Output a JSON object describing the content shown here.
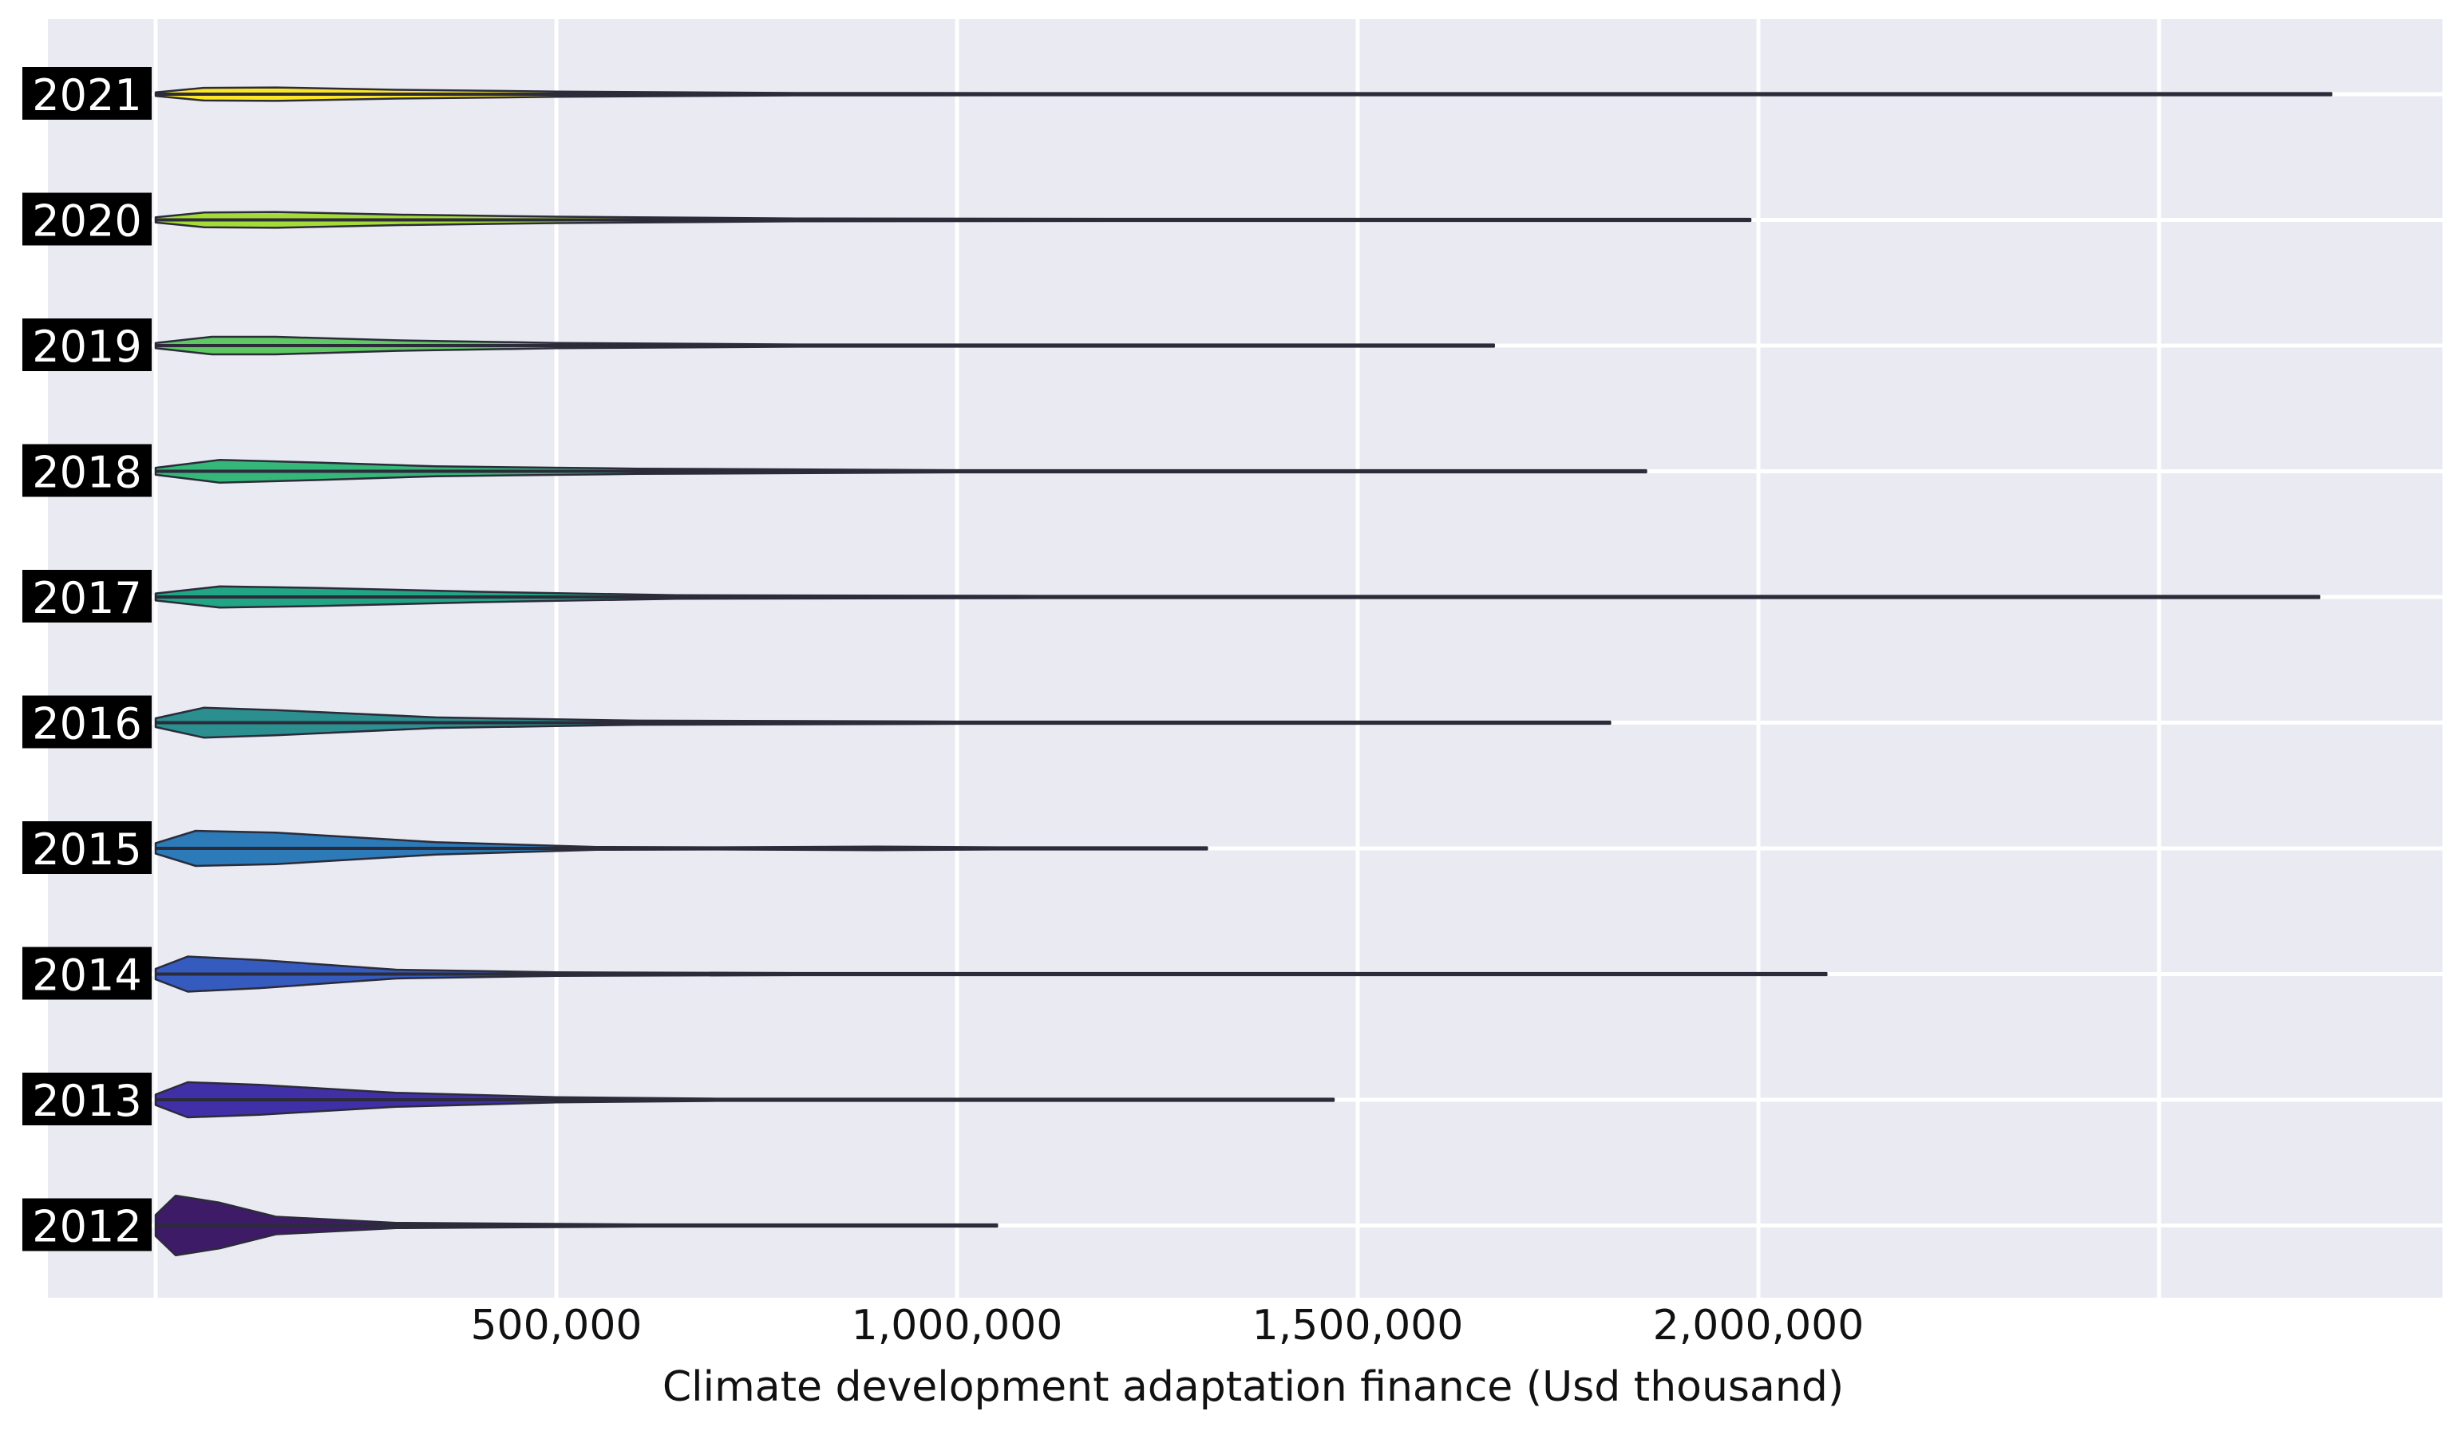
{
  "chart_data": {
    "type": "violin",
    "orientation": "horizontal",
    "xlabel": "Climate development adaptation finance (Usd thousand)",
    "ylabel": "",
    "xlim": [
      -130000,
      2780000
    ],
    "grid": true,
    "x_ticks": [
      0,
      500000,
      1000000,
      1500000,
      2000000,
      2500000
    ],
    "x_tick_labels": [
      {
        "value": 500000,
        "label": "500,000"
      },
      {
        "value": 1000000,
        "label": "1,000,000"
      },
      {
        "value": 1500000,
        "label": "1,500,000"
      },
      {
        "value": 2000000,
        "label": "2,000,000"
      }
    ],
    "series": [
      {
        "name": "2021",
        "max": 2715000,
        "color": "#fde725",
        "profile": [
          [
            0,
            0.1
          ],
          [
            60000,
            0.36
          ],
          [
            150000,
            0.38
          ],
          [
            300000,
            0.25
          ],
          [
            500000,
            0.15
          ],
          [
            800000,
            0.07
          ],
          [
            1200000,
            0.035
          ],
          [
            2000000,
            0.02
          ],
          [
            2715000,
            0.01
          ]
        ]
      },
      {
        "name": "2020",
        "max": 1990000,
        "color": "#a5db36",
        "profile": [
          [
            0,
            0.15
          ],
          [
            60000,
            0.42
          ],
          [
            150000,
            0.45
          ],
          [
            300000,
            0.3
          ],
          [
            500000,
            0.18
          ],
          [
            800000,
            0.08
          ],
          [
            1200000,
            0.04
          ],
          [
            1990000,
            0.012
          ]
        ]
      },
      {
        "name": "2019",
        "max": 1670000,
        "color": "#5ec962",
        "profile": [
          [
            0,
            0.15
          ],
          [
            70000,
            0.5
          ],
          [
            150000,
            0.5
          ],
          [
            300000,
            0.3
          ],
          [
            500000,
            0.15
          ],
          [
            800000,
            0.06
          ],
          [
            1670000,
            0.015
          ]
        ]
      },
      {
        "name": "2018",
        "max": 1860000,
        "color": "#35b779",
        "profile": [
          [
            0,
            0.2
          ],
          [
            80000,
            0.65
          ],
          [
            200000,
            0.5
          ],
          [
            350000,
            0.28
          ],
          [
            600000,
            0.15
          ],
          [
            1000000,
            0.05
          ],
          [
            1860000,
            0.015
          ]
        ]
      },
      {
        "name": "2017",
        "max": 2700000,
        "color": "#21a585",
        "profile": [
          [
            0,
            0.2
          ],
          [
            80000,
            0.6
          ],
          [
            200000,
            0.52
          ],
          [
            400000,
            0.3
          ],
          [
            650000,
            0.1
          ],
          [
            1100000,
            0.04
          ],
          [
            1600000,
            0.03
          ],
          [
            2700000,
            0.012
          ]
        ]
      },
      {
        "name": "2016",
        "max": 1815000,
        "color": "#2a8f8e",
        "profile": [
          [
            0,
            0.25
          ],
          [
            60000,
            0.85
          ],
          [
            150000,
            0.72
          ],
          [
            350000,
            0.3
          ],
          [
            600000,
            0.12
          ],
          [
            1000000,
            0.05
          ],
          [
            1815000,
            0.012
          ]
        ]
      },
      {
        "name": "2015",
        "max": 1312000,
        "color": "#2c7ab8",
        "profile": [
          [
            0,
            0.3
          ],
          [
            50000,
            1.0
          ],
          [
            150000,
            0.9
          ],
          [
            350000,
            0.35
          ],
          [
            550000,
            0.08
          ],
          [
            700000,
            0.04
          ],
          [
            900000,
            0.1
          ],
          [
            1050000,
            0.03
          ],
          [
            1312000,
            0.012
          ]
        ]
      },
      {
        "name": "2014",
        "max": 2085000,
        "color": "#355bbf",
        "profile": [
          [
            0,
            0.3
          ],
          [
            40000,
            1.0
          ],
          [
            130000,
            0.8
          ],
          [
            300000,
            0.25
          ],
          [
            500000,
            0.1
          ],
          [
            800000,
            0.05
          ],
          [
            2085000,
            0.015
          ]
        ]
      },
      {
        "name": "2013",
        "max": 1470000,
        "color": "#4030a8",
        "profile": [
          [
            0,
            0.3
          ],
          [
            40000,
            1.0
          ],
          [
            130000,
            0.85
          ],
          [
            300000,
            0.4
          ],
          [
            500000,
            0.15
          ],
          [
            700000,
            0.06
          ],
          [
            1470000,
            0.015
          ]
        ]
      },
      {
        "name": "2012",
        "max": 1050000,
        "color": "#3e1b66",
        "profile": [
          [
            0,
            0.6
          ],
          [
            25000,
            1.7
          ],
          [
            80000,
            1.3
          ],
          [
            150000,
            0.5
          ],
          [
            300000,
            0.15
          ],
          [
            600000,
            0.04
          ],
          [
            900000,
            0.06
          ],
          [
            1050000,
            0.012
          ]
        ]
      }
    ]
  }
}
